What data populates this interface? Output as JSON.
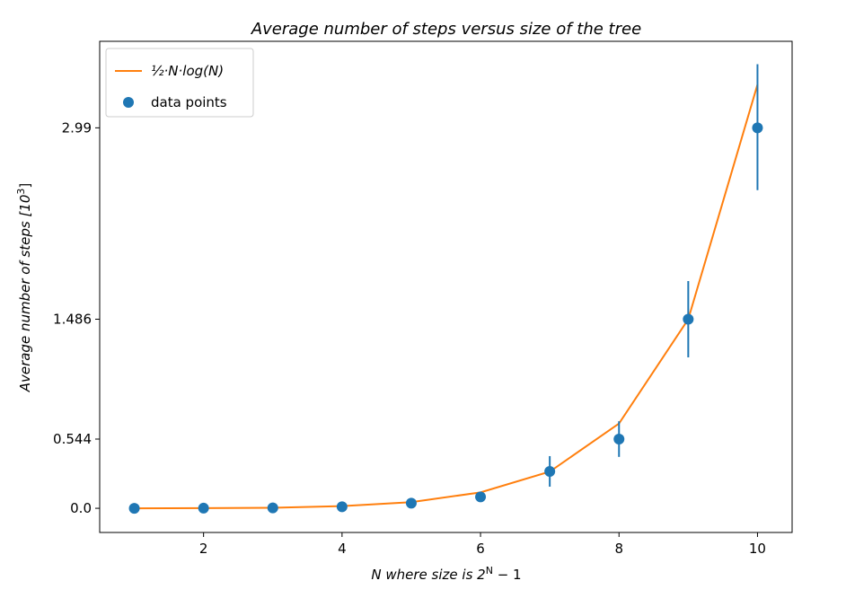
{
  "chart_data": {
    "type": "scatter",
    "title": "Average number of steps versus size of the tree",
    "xlabel_pre": "N where size is 2",
    "xlabel_sup": "N",
    "xlabel_post": " − 1",
    "ylabel_pre": "Average number of steps [10",
    "ylabel_sup": "3",
    "ylabel_post": "]",
    "xlim": [
      0.5,
      10.5
    ],
    "ylim": [
      -0.19,
      3.67
    ],
    "xticks": [
      2,
      4,
      6,
      8,
      10
    ],
    "yticks": [
      0.0,
      0.544,
      1.486,
      2.99
    ],
    "ytick_labels": [
      "0.0",
      "0.544",
      "1.486",
      "2.99"
    ],
    "grid": false,
    "legend_placement": "top-left",
    "legend": {
      "line_label": "½·N·log(N)",
      "points_label": "data points"
    },
    "series": [
      {
        "name": "½·N·log(N)",
        "kind": "line",
        "color": "#ff7f0e",
        "x": [
          1,
          2,
          3,
          4,
          5,
          6,
          7,
          8,
          9,
          10
        ],
        "y": [
          0.0,
          0.001,
          0.004,
          0.017,
          0.048,
          0.125,
          0.288,
          0.666,
          1.486,
          3.33
        ]
      },
      {
        "name": "data points",
        "kind": "scatter",
        "color": "#1f77b4",
        "x": [
          1,
          2,
          3,
          4,
          5,
          6,
          7,
          8,
          9,
          10
        ],
        "y": [
          0.0,
          0.001,
          0.003,
          0.012,
          0.04,
          0.09,
          0.29,
          0.544,
          1.486,
          2.99
        ],
        "yerr_low": [
          0.0,
          0.0,
          0.0,
          0.0,
          0.0,
          0.0,
          0.12,
          0.14,
          0.3,
          0.49
        ],
        "yerr_high": [
          0.0,
          0.0,
          0.0,
          0.0,
          0.0,
          0.0,
          0.12,
          0.14,
          0.3,
          0.5
        ]
      }
    ]
  }
}
